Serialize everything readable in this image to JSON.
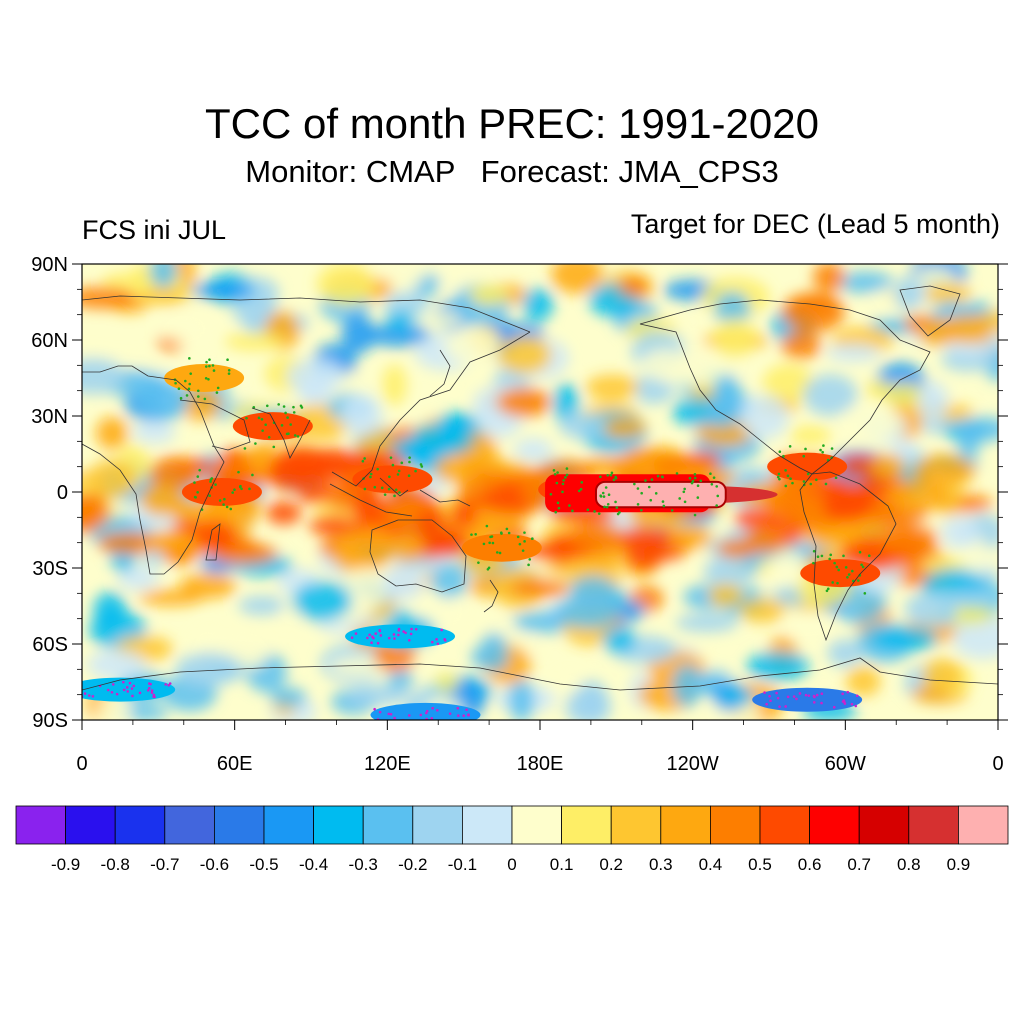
{
  "title": "TCC of month PREC: 1991-2020",
  "subtitle": "Monitor: CMAP   Forecast: JMA_CPS3",
  "left_label": "FCS ini JUL",
  "right_label": "Target for DEC (Lead 5 month)",
  "map": {
    "projection": "cylindrical-equidistant",
    "lon_range": [
      0,
      360
    ],
    "lat_range": [
      -90,
      90
    ],
    "lat_ticks": [
      {
        "value": 90,
        "label": "90N"
      },
      {
        "value": 60,
        "label": "60N"
      },
      {
        "value": 30,
        "label": "30N"
      },
      {
        "value": 0,
        "label": "0"
      },
      {
        "value": -30,
        "label": "30S"
      },
      {
        "value": -60,
        "label": "60S"
      },
      {
        "value": -90,
        "label": "90S"
      }
    ],
    "lon_ticks": [
      {
        "value": 0,
        "label": "0"
      },
      {
        "value": 60,
        "label": "60E"
      },
      {
        "value": 120,
        "label": "120E"
      },
      {
        "value": 180,
        "label": "180E"
      },
      {
        "value": 240,
        "label": "120W"
      },
      {
        "value": 300,
        "label": "60W"
      },
      {
        "value": 360,
        "label": "0"
      }
    ],
    "stipple_colors": {
      "positive_significant": "#22aa22",
      "negative_significant": "#cc22cc"
    },
    "high_correlation_regions": [
      {
        "lon": 238,
        "lat": -1,
        "level": 0.9
      },
      {
        "lon": 215,
        "lat": 0,
        "level": 0.7
      },
      {
        "lon": 195,
        "lat": 1,
        "level": 0.6
      },
      {
        "lon": 55,
        "lat": 0,
        "level": 0.6
      },
      {
        "lon": 122,
        "lat": 5,
        "level": 0.6
      },
      {
        "lon": 75,
        "lat": 26,
        "level": 0.6
      },
      {
        "lon": 298,
        "lat": -32,
        "level": 0.6
      },
      {
        "lon": 285,
        "lat": 10,
        "level": 0.6
      },
      {
        "lon": 165,
        "lat": -22,
        "level": 0.5
      },
      {
        "lon": 48,
        "lat": 45,
        "level": 0.4
      }
    ],
    "low_correlation_regions": [
      {
        "lon": 285,
        "lat": -82,
        "level": -0.6
      },
      {
        "lon": 135,
        "lat": -88,
        "level": -0.5
      },
      {
        "lon": 125,
        "lat": -57,
        "level": -0.4
      },
      {
        "lon": 15,
        "lat": -78,
        "level": -0.4
      }
    ]
  },
  "colorbar": {
    "colors": [
      "#8a22ee",
      "#2a10ee",
      "#1a32ee",
      "#4266dd",
      "#2a7ae8",
      "#1a98f4",
      "#00bbf0",
      "#5ac0f0",
      "#9ed4f0",
      "#cce8f8",
      "#fefecc",
      "#feee66",
      "#fec630",
      "#fea810",
      "#fd7e00",
      "#fe4a00",
      "#fe0000",
      "#d60000",
      "#d63030",
      "#feb0b0"
    ],
    "labels": [
      "-0.9",
      "-0.8",
      "-0.7",
      "-0.6",
      "-0.5",
      "-0.4",
      "-0.3",
      "-0.2",
      "-0.1",
      "0",
      "0.1",
      "0.2",
      "0.3",
      "0.4",
      "0.5",
      "0.6",
      "0.7",
      "0.8",
      "0.9"
    ]
  }
}
